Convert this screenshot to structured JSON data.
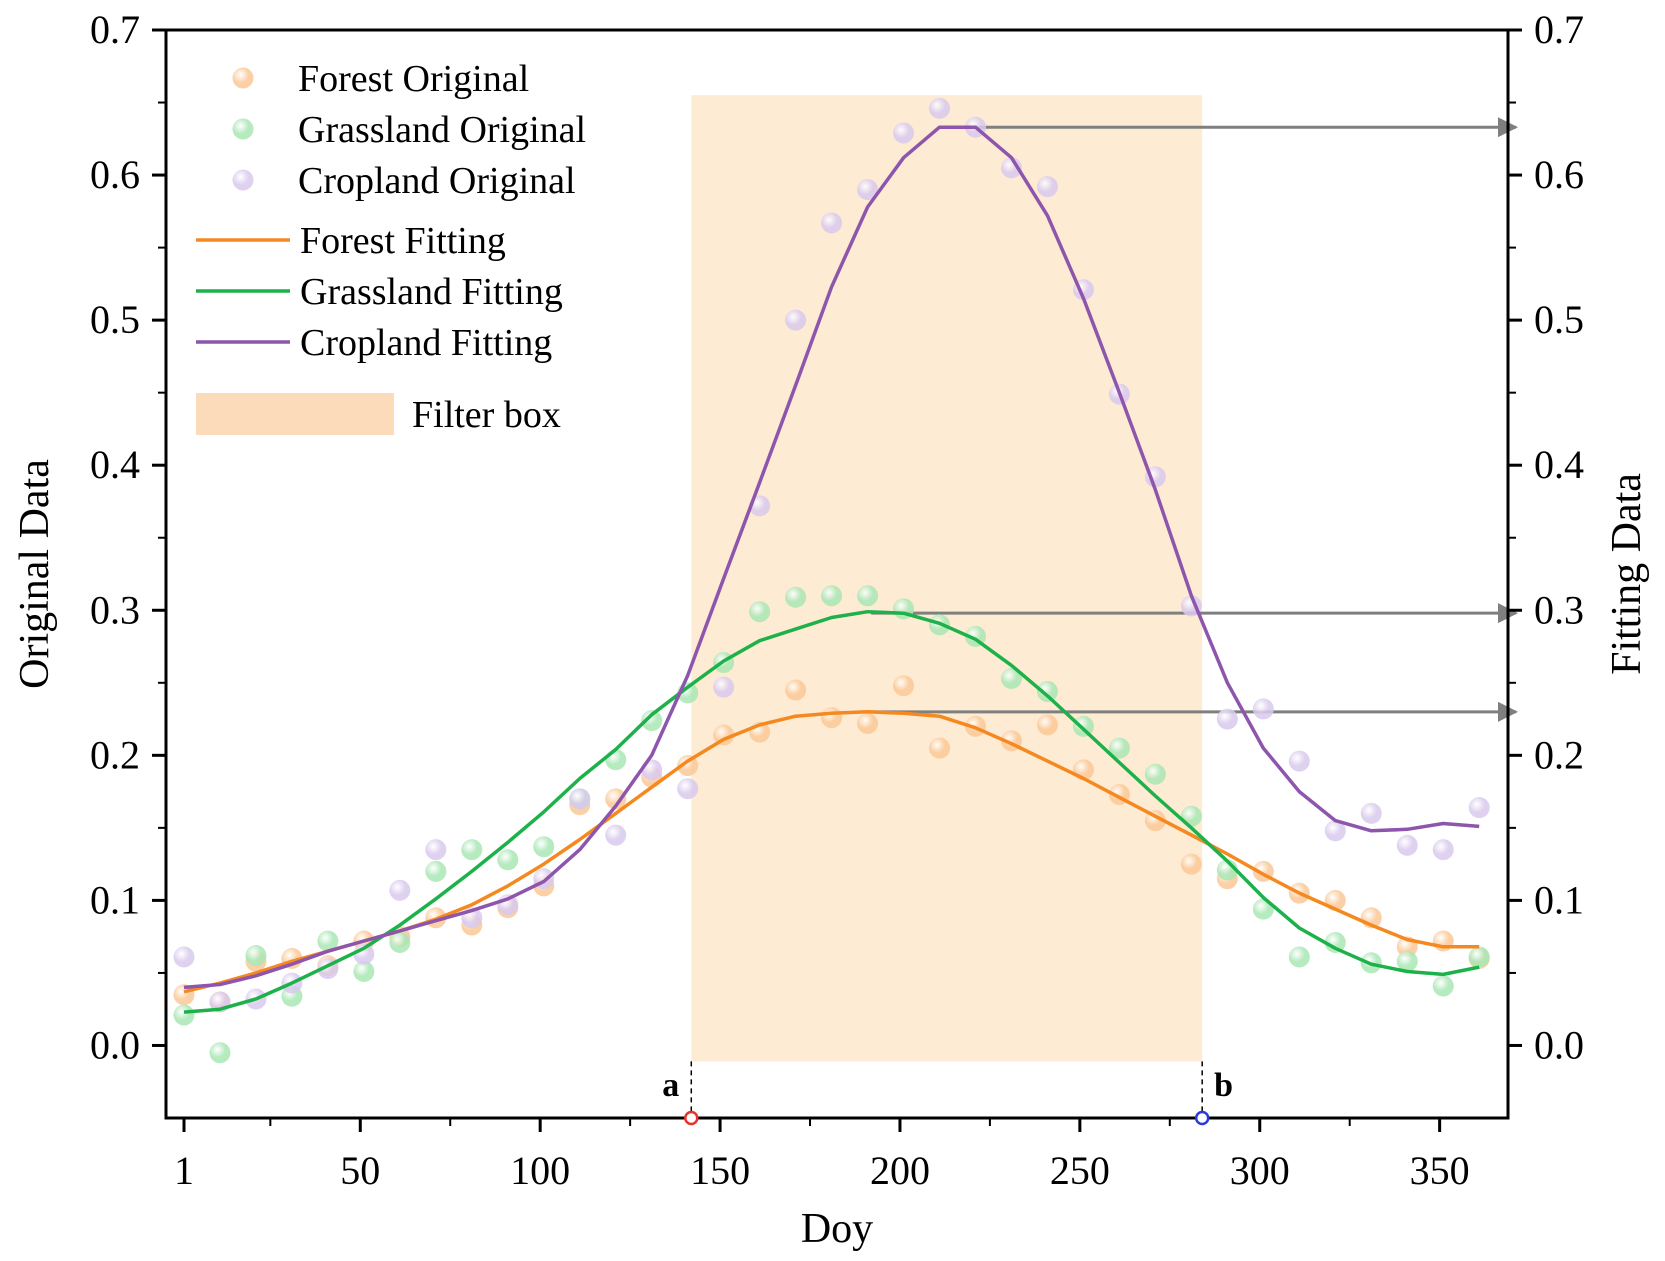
{
  "chart_data": {
    "type": "line",
    "title": "",
    "xlabel": "Doy",
    "ylabel": "Original Data",
    "y2label": "Fitting Data",
    "xlim": [
      -4,
      369
    ],
    "ylim": [
      -0.05,
      0.7
    ],
    "x_ticks": [
      1,
      50,
      100,
      150,
      200,
      250,
      300,
      350
    ],
    "y_ticks": [
      0.0,
      0.1,
      0.2,
      0.3,
      0.4,
      0.5,
      0.6,
      0.7
    ],
    "y_tick_labels": [
      "0.0",
      "0.1",
      "0.2",
      "0.3",
      "0.4",
      "0.5",
      "0.6",
      "0.7"
    ],
    "grid": false,
    "legend_position": "top-left",
    "filter_box": {
      "label": "Filter box",
      "x_start": 142,
      "x_end": 284,
      "y_bottom": -0.011,
      "y_top": 0.655,
      "color": "#fdebd3"
    },
    "markers": [
      {
        "label": "a",
        "x": 142,
        "color": "#e8332d"
      },
      {
        "label": "b",
        "x": 284,
        "color": "#2b3bd9"
      }
    ],
    "arrows": [
      {
        "from_x": 212,
        "y": 0.633,
        "color": "#7f7f7f"
      },
      {
        "from_x": 192,
        "y": 0.298,
        "color": "#7f7f7f"
      },
      {
        "from_x": 192,
        "y": 0.23,
        "color": "#7f7f7f"
      }
    ],
    "scatter_series": [
      {
        "name": "Forest Original",
        "color": "#fbc896",
        "x": [
          1,
          11,
          21,
          31,
          41,
          51,
          61,
          71,
          81,
          91,
          101,
          111,
          121,
          131,
          141,
          151,
          161,
          171,
          181,
          191,
          201,
          211,
          221,
          231,
          241,
          251,
          261,
          271,
          281,
          291,
          301,
          311,
          321,
          331,
          341,
          351,
          361
        ],
        "values": [
          0.035,
          0.03,
          0.058,
          0.06,
          0.055,
          0.072,
          0.075,
          0.088,
          0.083,
          0.095,
          0.11,
          0.166,
          0.17,
          0.185,
          0.193,
          0.214,
          0.216,
          0.245,
          0.226,
          0.222,
          0.248,
          0.205,
          0.22,
          0.21,
          0.221,
          0.19,
          0.173,
          0.155,
          0.125,
          0.115,
          0.12,
          0.105,
          0.1,
          0.088,
          0.068,
          0.072,
          0.06
        ]
      },
      {
        "name": "Grassland Original",
        "color": "#a9e6b4",
        "x": [
          1,
          11,
          21,
          31,
          41,
          51,
          61,
          71,
          81,
          91,
          101,
          111,
          121,
          131,
          141,
          151,
          161,
          171,
          181,
          191,
          201,
          211,
          221,
          231,
          241,
          251,
          261,
          271,
          281,
          291,
          301,
          311,
          321,
          331,
          341,
          351,
          361
        ],
        "values": [
          0.021,
          -0.005,
          0.062,
          0.034,
          0.072,
          0.051,
          0.071,
          0.12,
          0.135,
          0.128,
          0.137,
          0.17,
          0.197,
          0.224,
          0.243,
          0.264,
          0.299,
          0.309,
          0.31,
          0.31,
          0.301,
          0.29,
          0.282,
          0.253,
          0.244,
          0.22,
          0.205,
          0.187,
          0.158,
          0.121,
          0.094,
          0.061,
          0.071,
          0.057,
          0.058,
          0.041,
          0.061
        ]
      },
      {
        "name": "Cropland Original",
        "color": "#d9c9ed",
        "x": [
          1,
          11,
          21,
          31,
          41,
          51,
          61,
          71,
          81,
          91,
          101,
          111,
          121,
          131,
          141,
          151,
          161,
          171,
          181,
          191,
          201,
          211,
          221,
          231,
          241,
          251,
          261,
          271,
          281,
          291,
          301,
          311,
          321,
          331,
          341,
          351,
          361
        ],
        "values": [
          0.061,
          0.03,
          0.032,
          0.043,
          0.053,
          0.063,
          0.107,
          0.135,
          0.088,
          0.097,
          0.115,
          0.17,
          0.145,
          0.19,
          0.177,
          0.247,
          0.372,
          0.5,
          0.567,
          0.59,
          0.629,
          0.646,
          0.633,
          0.605,
          0.592,
          0.521,
          0.449,
          0.392,
          0.303,
          0.225,
          0.232,
          0.196,
          0.148,
          0.16,
          0.138,
          0.135,
          0.164
        ]
      }
    ],
    "line_series": [
      {
        "name": "Forest Fitting",
        "color": "#f5881f",
        "x": [
          1,
          11,
          21,
          31,
          41,
          51,
          61,
          71,
          81,
          91,
          101,
          111,
          121,
          131,
          141,
          151,
          161,
          171,
          181,
          191,
          201,
          211,
          221,
          231,
          241,
          251,
          261,
          271,
          281,
          291,
          301,
          311,
          321,
          331,
          341,
          351,
          361
        ],
        "values": [
          0.037,
          0.043,
          0.05,
          0.058,
          0.065,
          0.072,
          0.079,
          0.087,
          0.097,
          0.11,
          0.125,
          0.142,
          0.16,
          0.178,
          0.196,
          0.211,
          0.221,
          0.227,
          0.229,
          0.23,
          0.229,
          0.227,
          0.219,
          0.208,
          0.196,
          0.184,
          0.171,
          0.158,
          0.145,
          0.132,
          0.118,
          0.105,
          0.094,
          0.083,
          0.073,
          0.068,
          0.068
        ]
      },
      {
        "name": "Grassland Fitting",
        "color": "#1db14a",
        "x": [
          1,
          11,
          21,
          31,
          41,
          51,
          61,
          71,
          81,
          91,
          101,
          111,
          121,
          131,
          141,
          151,
          161,
          171,
          181,
          191,
          201,
          211,
          221,
          231,
          241,
          251,
          261,
          271,
          281,
          291,
          301,
          311,
          321,
          331,
          341,
          351,
          361
        ],
        "values": [
          0.023,
          0.025,
          0.032,
          0.043,
          0.055,
          0.067,
          0.083,
          0.101,
          0.12,
          0.14,
          0.161,
          0.184,
          0.204,
          0.228,
          0.247,
          0.265,
          0.279,
          0.287,
          0.295,
          0.299,
          0.298,
          0.291,
          0.28,
          0.262,
          0.241,
          0.218,
          0.195,
          0.172,
          0.15,
          0.127,
          0.102,
          0.081,
          0.067,
          0.056,
          0.051,
          0.049,
          0.054
        ]
      },
      {
        "name": "Cropland Fitting",
        "color": "#8e55ad",
        "x": [
          1,
          11,
          21,
          31,
          41,
          51,
          61,
          71,
          81,
          91,
          101,
          111,
          121,
          131,
          141,
          151,
          161,
          171,
          181,
          191,
          201,
          211,
          221,
          231,
          241,
          251,
          261,
          271,
          281,
          291,
          301,
          311,
          321,
          331,
          341,
          351,
          361
        ],
        "values": [
          0.04,
          0.042,
          0.048,
          0.056,
          0.065,
          0.072,
          0.079,
          0.086,
          0.093,
          0.101,
          0.113,
          0.135,
          0.165,
          0.2,
          0.255,
          0.322,
          0.388,
          0.455,
          0.523,
          0.578,
          0.612,
          0.633,
          0.633,
          0.612,
          0.572,
          0.515,
          0.45,
          0.383,
          0.31,
          0.25,
          0.205,
          0.175,
          0.155,
          0.148,
          0.149,
          0.153,
          0.151
        ]
      }
    ]
  }
}
